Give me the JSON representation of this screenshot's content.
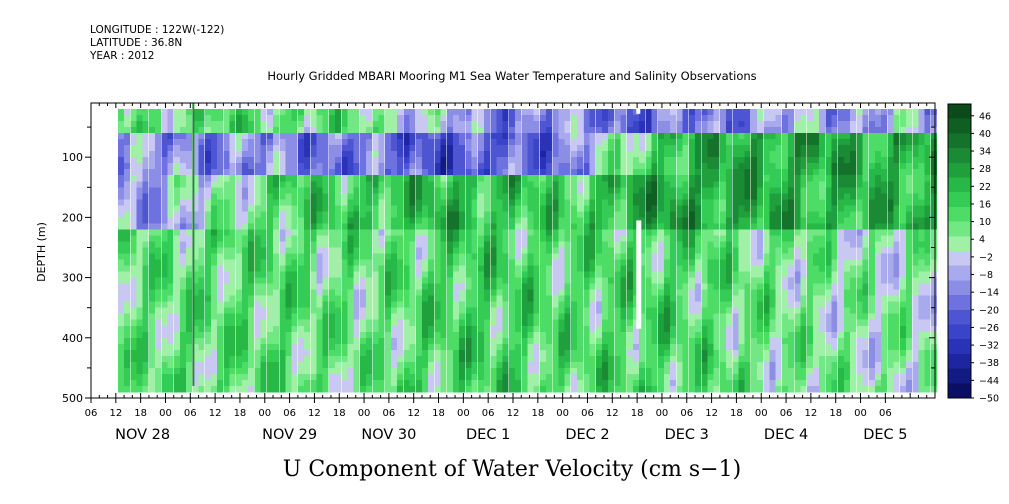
{
  "chart_data": {
    "type": "heatmap",
    "header_lines": [
      "LONGITUDE : 122W(-122)",
      "LATITUDE : 36.8N",
      "YEAR : 2012"
    ],
    "title": "Hourly Gridded MBARI Mooring M1 Sea Water Temperature and Salinity Observations",
    "xlabel": "U Component of Water Velocity (cm s−1)",
    "ylabel": "DEPTH (m)",
    "yticks": [
      "100",
      "200",
      "300",
      "400",
      "500"
    ],
    "ylim": [
      10,
      500
    ],
    "y_inverted": true,
    "xlim_hours": [
      0,
      204
    ],
    "x_hour_ticks": [
      "06",
      "12",
      "18",
      "00",
      "06",
      "12",
      "18",
      "00",
      "06",
      "12",
      "18",
      "00",
      "06",
      "12",
      "18",
      "00",
      "06",
      "12",
      "18",
      "00",
      "06",
      "12",
      "18",
      "00",
      "06",
      "12",
      "18",
      "00",
      "06",
      "12",
      "18",
      "00",
      "06"
    ],
    "x_day_labels": [
      "NOV 28",
      "NOV 29",
      "NOV 30",
      "DEC  1",
      "DEC  2",
      "DEC  3",
      "DEC  4",
      "DEC  5"
    ],
    "colorbar": {
      "levels": [
        "46",
        "40",
        "34",
        "28",
        "22",
        "16",
        "10",
        "4",
        "−2",
        "−8",
        "−14",
        "−20",
        "−26",
        "−32",
        "−38",
        "−44",
        "−50"
      ],
      "min": -50,
      "max": 50,
      "colors_top_to_bottom": [
        "#0b4a1a",
        "#0f5e22",
        "#14722b",
        "#1a8a34",
        "#1fa03d",
        "#27b848",
        "#34cc55",
        "#4ddd66",
        "#72e884",
        "#a0f0a8",
        "#c8c8f2",
        "#a9aaee",
        "#8c8ee6",
        "#6e72de",
        "#4e55d2",
        "#3a44c8",
        "#2a32b8",
        "#1d26a0",
        "#121a84",
        "#0a0f64"
      ]
    },
    "field_depth_bands": [
      {
        "depth": [
          20,
          60
        ],
        "u_by_day": [
          10,
          12,
          8,
          -12,
          -14,
          -20,
          -10,
          -8
        ]
      },
      {
        "depth": [
          60,
          130
        ],
        "u_by_day": [
          -12,
          -14,
          -18,
          -24,
          -16,
          20,
          26,
          24
        ]
      },
      {
        "depth": [
          130,
          220
        ],
        "u_by_day": [
          -8,
          12,
          18,
          22,
          14,
          28,
          24,
          22
        ]
      },
      {
        "depth": [
          220,
          480
        ],
        "u_by_day": [
          10,
          12,
          8,
          16,
          12,
          14,
          8,
          4
        ]
      }
    ]
  }
}
